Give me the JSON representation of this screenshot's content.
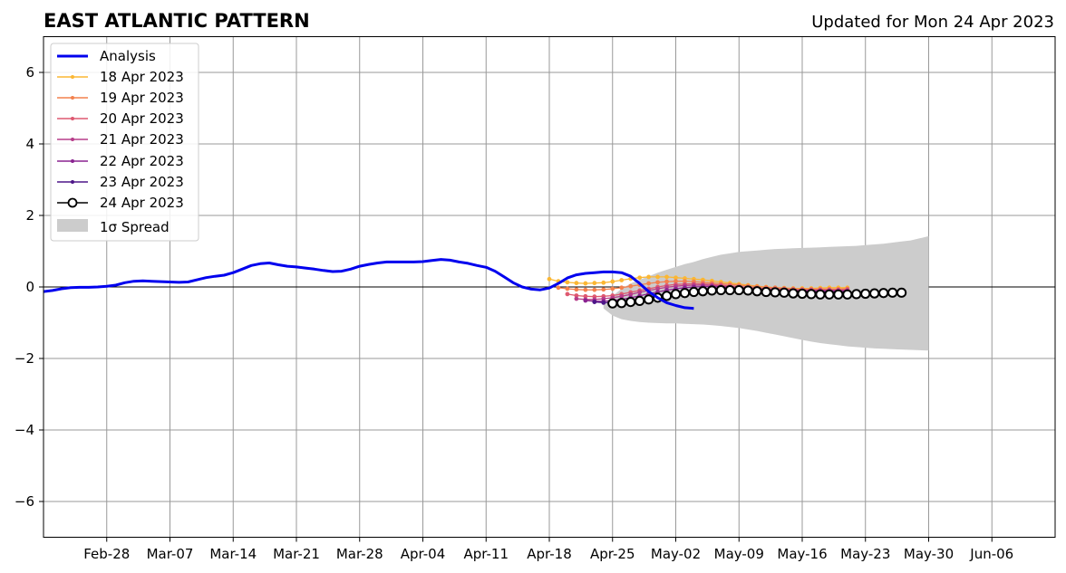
{
  "chart_data": {
    "type": "line",
    "title": "EAST ATLANTIC PATTERN",
    "subtitle": "Updated for Mon 24 Apr 2023",
    "xlabel": "",
    "ylabel": "",
    "x_start": "2023-02-21",
    "xlim": [
      "2023-02-21",
      "2023-06-13"
    ],
    "ylim": [
      -7,
      7
    ],
    "x_ticks": [
      "Feb-28",
      "Mar-07",
      "Mar-14",
      "Mar-21",
      "Mar-28",
      "Apr-04",
      "Apr-11",
      "Apr-18",
      "Apr-25",
      "May-02",
      "May-09",
      "May-16",
      "May-23",
      "May-30",
      "Jun-06"
    ],
    "y_ticks": [
      6,
      4,
      2,
      0,
      -2,
      -4,
      -6
    ],
    "y_tick_labels": [
      "6",
      "4",
      "2",
      "0",
      "−2",
      "−4",
      "−6"
    ],
    "grid": true,
    "legend_position": "top-left",
    "analysis": {
      "name": "Analysis",
      "color": "#0000ee",
      "values": [
        -0.13,
        -0.1,
        -0.05,
        -0.02,
        -0.01,
        -0.01,
        0.0,
        0.02,
        0.05,
        0.12,
        0.16,
        0.17,
        0.16,
        0.15,
        0.14,
        0.13,
        0.14,
        0.2,
        0.26,
        0.3,
        0.33,
        0.4,
        0.5,
        0.6,
        0.65,
        0.67,
        0.62,
        0.58,
        0.56,
        0.53,
        0.5,
        0.46,
        0.43,
        0.44,
        0.5,
        0.58,
        0.63,
        0.67,
        0.7,
        0.7,
        0.7,
        0.7,
        0.71,
        0.74,
        0.77,
        0.75,
        0.7,
        0.66,
        0.6,
        0.55,
        0.44,
        0.28,
        0.12,
        0.0,
        -0.06,
        -0.08,
        -0.03,
        0.1,
        0.25,
        0.34,
        0.38,
        0.4,
        0.42,
        0.42,
        0.4,
        0.3,
        0.1,
        -0.13,
        -0.3,
        -0.44,
        -0.52,
        -0.58,
        -0.6
      ]
    },
    "forecasts": [
      {
        "name": "18 Apr 2023",
        "color": "#fbb733",
        "start": "2023-04-18",
        "values": [
          0.22,
          0.16,
          0.13,
          0.11,
          0.1,
          0.11,
          0.12,
          0.15,
          0.19,
          0.23,
          0.26,
          0.28,
          0.28,
          0.28,
          0.26,
          0.24,
          0.22,
          0.2,
          0.17,
          0.14,
          0.11,
          0.08,
          0.05,
          0.02,
          0.0,
          -0.02,
          -0.03,
          -0.04,
          -0.04,
          -0.04,
          -0.03,
          -0.02,
          -0.02,
          -0.02
        ]
      },
      {
        "name": "19 Apr 2023",
        "color": "#f3814d",
        "start": "2023-04-19",
        "values": [
          -0.02,
          -0.05,
          -0.07,
          -0.08,
          -0.08,
          -0.07,
          -0.05,
          -0.02,
          0.02,
          0.06,
          0.1,
          0.13,
          0.15,
          0.16,
          0.16,
          0.15,
          0.13,
          0.11,
          0.09,
          0.07,
          0.05,
          0.03,
          0.01,
          -0.01,
          -0.02,
          -0.04,
          -0.05,
          -0.06,
          -0.06,
          -0.06,
          -0.06,
          -0.06,
          -0.05
        ]
      },
      {
        "name": "20 Apr 2023",
        "color": "#de5970",
        "start": "2023-04-20",
        "values": [
          -0.2,
          -0.24,
          -0.26,
          -0.27,
          -0.26,
          -0.24,
          -0.2,
          -0.15,
          -0.1,
          -0.05,
          0.0,
          0.04,
          0.07,
          0.08,
          0.09,
          0.08,
          0.07,
          0.05,
          0.03,
          0.01,
          -0.01,
          -0.03,
          -0.04,
          -0.05,
          -0.06,
          -0.07,
          -0.08,
          -0.08,
          -0.08,
          -0.08,
          -0.08,
          -0.07
        ]
      },
      {
        "name": "21 Apr 2023",
        "color": "#b73d8a",
        "start": "2023-04-21",
        "values": [
          -0.33,
          -0.35,
          -0.35,
          -0.33,
          -0.3,
          -0.26,
          -0.21,
          -0.15,
          -0.1,
          -0.05,
          -0.01,
          0.02,
          0.04,
          0.05,
          0.05,
          0.04,
          0.02,
          0.0,
          -0.02,
          -0.04,
          -0.06,
          -0.07,
          -0.08,
          -0.09,
          -0.1,
          -0.1,
          -0.1,
          -0.1,
          -0.1,
          -0.1,
          -0.1
        ]
      },
      {
        "name": "22 Apr 2023",
        "color": "#8a2391",
        "start": "2023-04-22",
        "values": [
          -0.38,
          -0.4,
          -0.4,
          -0.38,
          -0.35,
          -0.3,
          -0.25,
          -0.19,
          -0.14,
          -0.09,
          -0.05,
          -0.02,
          0.0,
          0.01,
          0.01,
          0.0,
          -0.02,
          -0.04,
          -0.06,
          -0.08,
          -0.09,
          -0.1,
          -0.11,
          -0.12,
          -0.12,
          -0.12,
          -0.12,
          -0.12,
          -0.12,
          -0.12
        ]
      },
      {
        "name": "23 Apr 2023",
        "color": "#4d1688",
        "start": "2023-04-23",
        "values": [
          -0.42,
          -0.44,
          -0.44,
          -0.42,
          -0.39,
          -0.35,
          -0.3,
          -0.25,
          -0.2,
          -0.15,
          -0.11,
          -0.08,
          -0.06,
          -0.05,
          -0.05,
          -0.06,
          -0.07,
          -0.09,
          -0.11,
          -0.13,
          -0.14,
          -0.15,
          -0.16,
          -0.16,
          -0.16,
          -0.16,
          -0.16,
          -0.16,
          -0.16
        ]
      },
      {
        "name": "24 Apr 2023",
        "color": "#000000",
        "start": "2023-04-25",
        "values": [
          -0.46,
          -0.45,
          -0.42,
          -0.39,
          -0.35,
          -0.3,
          -0.25,
          -0.2,
          -0.17,
          -0.14,
          -0.12,
          -0.1,
          -0.09,
          -0.09,
          -0.09,
          -0.1,
          -0.12,
          -0.14,
          -0.15,
          -0.16,
          -0.18,
          -0.19,
          -0.2,
          -0.21,
          -0.21,
          -0.21,
          -0.21,
          -0.2,
          -0.19,
          -0.18,
          -0.17,
          -0.16,
          -0.16
        ]
      }
    ],
    "spread": {
      "name": "1σ Spread",
      "color": "#cccccc",
      "start": "2023-04-24",
      "upper": [
        -0.5,
        -0.25,
        -0.05,
        0.1,
        0.2,
        0.3,
        0.4,
        0.48,
        0.56,
        0.64,
        0.7,
        0.78,
        0.84,
        0.9,
        0.94,
        0.98,
        1.0,
        1.02,
        1.04,
        1.06,
        1.07,
        1.08,
        1.09,
        1.1,
        1.11,
        1.12,
        1.13,
        1.14,
        1.15,
        1.17,
        1.19,
        1.21,
        1.24,
        1.27,
        1.3,
        1.36,
        1.42
      ],
      "lower": [
        -0.6,
        -0.8,
        -0.9,
        -0.95,
        -0.98,
        -1.0,
        -1.01,
        -1.02,
        -1.02,
        -1.03,
        -1.04,
        -1.05,
        -1.07,
        -1.09,
        -1.12,
        -1.15,
        -1.19,
        -1.23,
        -1.28,
        -1.33,
        -1.38,
        -1.43,
        -1.48,
        -1.53,
        -1.57,
        -1.6,
        -1.63,
        -1.66,
        -1.68,
        -1.7,
        -1.72,
        -1.73,
        -1.74,
        -1.75,
        -1.76,
        -1.77,
        -1.78
      ]
    }
  }
}
